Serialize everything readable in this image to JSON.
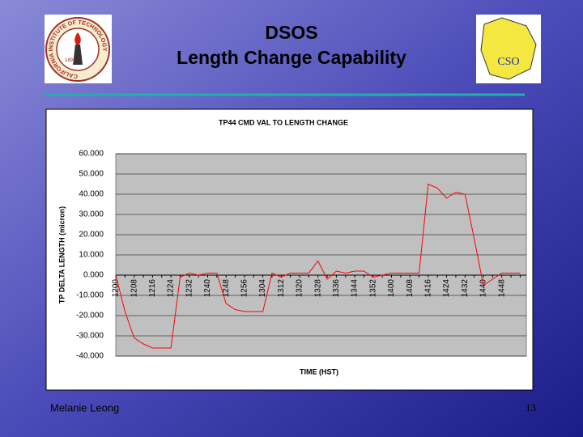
{
  "slide": {
    "title_lines": [
      "DSOS",
      "Length Change Capability"
    ],
    "footer_author": "Melanie Leong",
    "page_number": "13",
    "logos": {
      "left_ring": "CALIFORNIA INSTITUTE OF TECHNOLOGY",
      "left_year": "1891",
      "right": "CSO"
    }
  },
  "chart_data": {
    "type": "line",
    "title": "TP44 CMD VAL TO LENGTH CHANGE",
    "x_label": "TIME (HST)",
    "y_label": "TP DELTA LENGTH (micron)",
    "categories": [
      "1200",
      null,
      "1208",
      null,
      "1216",
      null,
      "1224",
      null,
      "1232",
      null,
      "1240",
      null,
      "1248",
      null,
      "1256",
      null,
      "1304",
      null,
      "1312",
      null,
      "1320",
      null,
      "1328",
      null,
      "1336",
      null,
      "1344",
      null,
      "1352",
      null,
      "1400",
      null,
      "1408",
      null,
      "1416",
      null,
      "1424",
      null,
      "1432",
      null,
      "1440",
      null,
      "1448",
      null,
      null
    ],
    "series": [
      {
        "color": "#ff0000",
        "values": [
          0,
          -18,
          -31,
          -34,
          -36,
          -36,
          -36,
          -1,
          1,
          0,
          1,
          1,
          -14,
          -17,
          -18,
          -18,
          -18,
          1,
          -1,
          1,
          1,
          1,
          7,
          -2,
          2,
          1,
          2,
          2,
          -1,
          0,
          1,
          1,
          1,
          1,
          45,
          43,
          38,
          41,
          40,
          18,
          -5,
          -2,
          1,
          1,
          1
        ]
      }
    ],
    "ylim": [
      -40,
      60
    ],
    "yticks": [
      {
        "value": -40,
        "label": "-40.000"
      },
      {
        "value": -30,
        "label": "-30.000"
      },
      {
        "value": -20,
        "label": "-20.000"
      },
      {
        "value": -10,
        "label": "-10.000"
      },
      {
        "value": 0,
        "label": "0.000"
      },
      {
        "value": 10,
        "label": "10.000"
      },
      {
        "value": 20,
        "label": "20.000"
      },
      {
        "value": 30,
        "label": "30.000"
      },
      {
        "value": 40,
        "label": "40.000"
      },
      {
        "value": 50,
        "label": "50.000"
      },
      {
        "value": 60,
        "label": "60.000"
      }
    ],
    "grid": true
  }
}
